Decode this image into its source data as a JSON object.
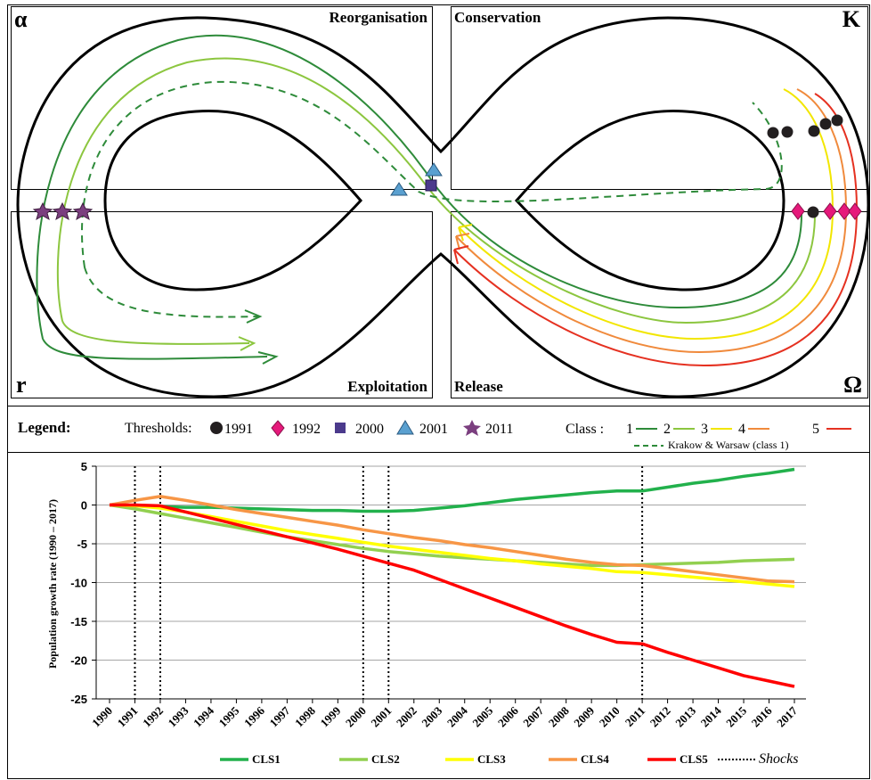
{
  "panarchy": {
    "corners": {
      "top_left": "α",
      "top_right": "K",
      "bottom_left": "r",
      "bottom_right": "Ω"
    },
    "quadrants": {
      "top_left": "Reorganisation",
      "top_right": "Conservation",
      "bottom_left": "Exploitation",
      "bottom_right": "Release"
    }
  },
  "legend": {
    "title": "Legend:",
    "thresholds_label": "Thresholds:",
    "thresholds": [
      {
        "year": "1991",
        "symbol": "circle",
        "color": "#231f20"
      },
      {
        "year": "1992",
        "symbol": "diamond",
        "color": "#e6197b"
      },
      {
        "year": "2000",
        "symbol": "square",
        "color": "#4b3a8c"
      },
      {
        "year": "2001",
        "symbol": "triangle",
        "color": "#5aa0d0"
      },
      {
        "year": "2011",
        "symbol": "star",
        "color": "#7b3f7f"
      }
    ],
    "class_label": "Class :",
    "classes": [
      {
        "name": "1",
        "color": "#2e8b3a"
      },
      {
        "name": "2",
        "color": "#8cc63f"
      },
      {
        "name": "3",
        "color": "#f2e600"
      },
      {
        "name": "4",
        "color": "#f08a3c"
      },
      {
        "name": "5",
        "color": "#e53121"
      }
    ],
    "dashed_label": "Krakow & Warsaw (class 1)"
  },
  "chart_data": {
    "type": "line",
    "ylabel": "Population growth rate (1990 – 2017)",
    "xlabel": "",
    "ylim": [
      -25,
      5
    ],
    "yticks": [
      "5",
      "0",
      "-5",
      "-10",
      "-15",
      "-20",
      "-25"
    ],
    "x": [
      "1990",
      "1991",
      "1992",
      "1993",
      "1994",
      "1995",
      "1996",
      "1997",
      "1998",
      "1999",
      "2000",
      "2001",
      "2002",
      "2003",
      "2004",
      "2005",
      "2006",
      "2007",
      "2008",
      "2009",
      "2010",
      "2011",
      "2012",
      "2013",
      "2014",
      "2015",
      "2016",
      "2017"
    ],
    "grid": true,
    "series": [
      {
        "name": "CLS1",
        "color": "#22b14c",
        "values": [
          0,
          -0.1,
          -0.2,
          -0.3,
          -0.3,
          -0.4,
          -0.5,
          -0.6,
          -0.7,
          -0.7,
          -0.8,
          -0.8,
          -0.7,
          -0.4,
          -0.1,
          0.3,
          0.7,
          1.0,
          1.3,
          1.6,
          1.8,
          1.8,
          2.3,
          2.8,
          3.2,
          3.7,
          4.1,
          4.6
        ]
      },
      {
        "name": "CLS2",
        "color": "#92d050",
        "values": [
          0,
          -0.5,
          -1.1,
          -1.7,
          -2.3,
          -2.9,
          -3.5,
          -4.1,
          -4.6,
          -5.1,
          -5.6,
          -6.0,
          -6.3,
          -6.6,
          -6.8,
          -7.0,
          -7.2,
          -7.4,
          -7.6,
          -7.8,
          -7.8,
          -7.7,
          -7.6,
          -7.5,
          -7.4,
          -7.2,
          -7.1,
          -7.0
        ]
      },
      {
        "name": "CLS3",
        "color": "#ffff00",
        "values": [
          0,
          -0.1,
          -0.4,
          -0.9,
          -1.5,
          -2.1,
          -2.7,
          -3.3,
          -3.8,
          -4.3,
          -4.8,
          -5.3,
          -5.7,
          -6.1,
          -6.5,
          -6.9,
          -7.2,
          -7.6,
          -7.9,
          -8.2,
          -8.6,
          -8.7,
          -9.0,
          -9.3,
          -9.6,
          -9.9,
          -10.2,
          -10.5
        ]
      },
      {
        "name": "CLS4",
        "color": "#f79646",
        "values": [
          0,
          0.6,
          1.1,
          0.6,
          0,
          -0.6,
          -1.1,
          -1.6,
          -2.1,
          -2.6,
          -3.2,
          -3.7,
          -4.2,
          -4.6,
          -5.1,
          -5.5,
          -6.0,
          -6.5,
          -7.0,
          -7.4,
          -7.7,
          -7.8,
          -8.2,
          -8.6,
          -9.0,
          -9.4,
          -9.8,
          -9.9
        ]
      },
      {
        "name": "CLS5",
        "color": "#ff0000",
        "values": [
          0,
          0,
          -0.1,
          -0.9,
          -1.7,
          -2.5,
          -3.3,
          -4.1,
          -4.9,
          -5.7,
          -6.6,
          -7.5,
          -8.4,
          -9.6,
          -10.8,
          -12.0,
          -13.2,
          -14.4,
          -15.6,
          -16.7,
          -17.7,
          -17.9,
          -19.0,
          -20.0,
          -21.0,
          -22.0,
          -22.7,
          -23.4
        ]
      }
    ],
    "shocks": [
      "1991",
      "1992",
      "2000",
      "2001",
      "2011"
    ],
    "legend": [
      "CLS1",
      "CLS2",
      "CLS3",
      "CLS4",
      "CLS5"
    ],
    "shocks_label": "Shocks"
  }
}
